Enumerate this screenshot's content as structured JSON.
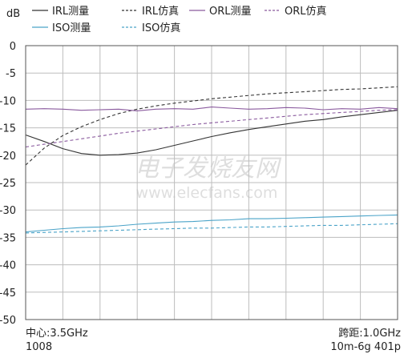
{
  "chart_data": {
    "type": "line",
    "ylabel": "dB",
    "ylim": [
      -50,
      0
    ],
    "yticks": [
      0,
      -5,
      -10,
      -15,
      -20,
      -25,
      -30,
      -35,
      -40,
      -45,
      -50
    ],
    "xlim": [
      3.0,
      4.0
    ],
    "grid": true,
    "legend_placement": "top",
    "footer": {
      "center_label": "中心:3.5GHz",
      "span_label": "跨距:1.0GHz",
      "left_sub": "1008",
      "right_sub": "10m-6g 401p"
    },
    "watermark": {
      "line1": "电子发烧友网",
      "line2": "www.elecfans.com"
    },
    "series": [
      {
        "name": "IRL测量",
        "color": "#333333",
        "dash": "solid",
        "x": [
          3.0,
          3.05,
          3.1,
          3.15,
          3.2,
          3.25,
          3.3,
          3.35,
          3.4,
          3.45,
          3.5,
          3.55,
          3.6,
          3.65,
          3.7,
          3.75,
          3.8,
          3.85,
          3.9,
          3.95,
          4.0
        ],
        "y": [
          -16.3,
          -17.5,
          -18.8,
          -19.7,
          -20.0,
          -19.9,
          -19.6,
          -19.0,
          -18.2,
          -17.4,
          -16.6,
          -15.9,
          -15.3,
          -14.8,
          -14.3,
          -13.8,
          -13.5,
          -13.0,
          -12.6,
          -12.2,
          -11.8
        ]
      },
      {
        "name": "IRL仿真",
        "color": "#333333",
        "dash": "dashed",
        "x": [
          3.0,
          3.05,
          3.1,
          3.15,
          3.2,
          3.25,
          3.3,
          3.35,
          3.4,
          3.45,
          3.5,
          3.55,
          3.6,
          3.65,
          3.7,
          3.75,
          3.8,
          3.85,
          3.9,
          3.95,
          4.0
        ],
        "y": [
          -21.8,
          -18.7,
          -16.4,
          -14.8,
          -13.5,
          -12.4,
          -11.6,
          -11.0,
          -10.5,
          -10.1,
          -9.7,
          -9.4,
          -9.1,
          -8.8,
          -8.6,
          -8.4,
          -8.2,
          -8.0,
          -7.9,
          -7.7,
          -7.5
        ]
      },
      {
        "name": "ORL测量",
        "color": "#8a5a9e",
        "dash": "solid",
        "x": [
          3.0,
          3.05,
          3.1,
          3.15,
          3.2,
          3.25,
          3.3,
          3.35,
          3.4,
          3.45,
          3.5,
          3.55,
          3.6,
          3.65,
          3.7,
          3.75,
          3.8,
          3.85,
          3.9,
          3.95,
          4.0
        ],
        "y": [
          -11.6,
          -11.5,
          -11.6,
          -11.8,
          -11.7,
          -11.6,
          -11.9,
          -11.6,
          -11.5,
          -11.6,
          -11.2,
          -11.4,
          -11.6,
          -11.5,
          -11.3,
          -11.4,
          -11.7,
          -11.5,
          -11.6,
          -11.3,
          -11.5
        ]
      },
      {
        "name": "ORL仿真",
        "color": "#8a5a9e",
        "dash": "dashed",
        "x": [
          3.0,
          3.05,
          3.1,
          3.15,
          3.2,
          3.25,
          3.3,
          3.35,
          3.4,
          3.45,
          3.5,
          3.55,
          3.6,
          3.65,
          3.7,
          3.75,
          3.8,
          3.85,
          3.9,
          3.95,
          4.0
        ],
        "y": [
          -18.5,
          -18.0,
          -17.5,
          -17.0,
          -16.5,
          -16.0,
          -15.6,
          -15.2,
          -14.8,
          -14.4,
          -14.1,
          -13.8,
          -13.5,
          -13.2,
          -12.9,
          -12.6,
          -12.4,
          -12.2,
          -12.0,
          -11.8,
          -11.7
        ]
      },
      {
        "name": "ISO测量",
        "color": "#4aa3c8",
        "dash": "solid",
        "x": [
          3.0,
          3.05,
          3.1,
          3.15,
          3.2,
          3.25,
          3.3,
          3.35,
          3.4,
          3.45,
          3.5,
          3.55,
          3.6,
          3.65,
          3.7,
          3.75,
          3.8,
          3.85,
          3.9,
          3.95,
          4.0
        ],
        "y": [
          -34.0,
          -33.7,
          -33.4,
          -33.2,
          -33.1,
          -32.9,
          -32.6,
          -32.4,
          -32.2,
          -32.1,
          -31.9,
          -31.8,
          -31.6,
          -31.6,
          -31.5,
          -31.4,
          -31.3,
          -31.2,
          -31.1,
          -31.0,
          -30.9
        ]
      },
      {
        "name": "ISO仿真",
        "color": "#4aa3c8",
        "dash": "dashed",
        "x": [
          3.0,
          3.05,
          3.1,
          3.15,
          3.2,
          3.25,
          3.3,
          3.35,
          3.4,
          3.45,
          3.5,
          3.55,
          3.6,
          3.65,
          3.7,
          3.75,
          3.8,
          3.85,
          3.9,
          3.95,
          4.0
        ],
        "y": [
          -34.2,
          -34.1,
          -34.0,
          -33.9,
          -33.8,
          -33.7,
          -33.6,
          -33.5,
          -33.4,
          -33.3,
          -33.3,
          -33.2,
          -33.1,
          -33.1,
          -33.0,
          -32.9,
          -32.8,
          -32.8,
          -32.7,
          -32.6,
          -32.5
        ]
      }
    ]
  }
}
